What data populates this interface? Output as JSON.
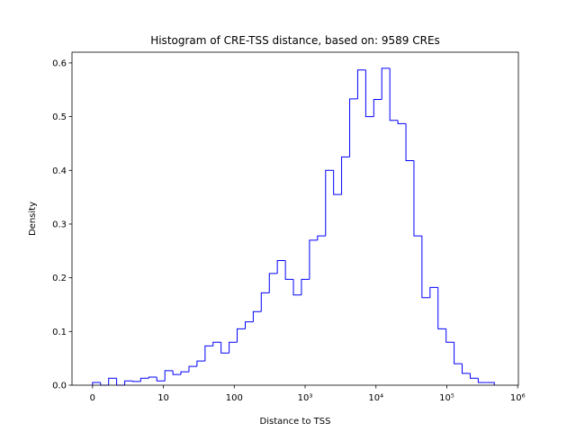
{
  "chart_data": {
    "type": "histogram",
    "title": "Histogram of CRE-TSS distance, based on: 9589 CREs",
    "xlabel": "Distance to TSS",
    "ylabel": "Density",
    "color": "#0000ff",
    "bins": [
      0,
      0.113,
      0.227,
      0.34,
      0.454,
      0.567,
      0.68,
      0.794,
      0.907,
      1.021,
      1.134,
      1.247,
      1.361,
      1.474,
      1.588,
      1.701,
      1.814,
      1.928,
      2.041,
      2.155,
      2.268,
      2.381,
      2.495,
      2.608,
      2.722,
      2.835,
      2.948,
      3.062,
      3.175,
      3.289,
      3.402,
      3.515,
      3.629,
      3.742,
      3.856,
      3.969,
      4.082,
      4.196,
      4.309,
      4.423,
      4.536,
      4.649,
      4.763,
      4.876,
      4.99,
      5.103,
      5.216,
      5.33,
      5.443,
      5.557,
      5.67
    ],
    "counts": [
      0.005,
      0,
      0.013,
      0,
      0.008,
      0.007,
      0.013,
      0.015,
      0.008,
      0.027,
      0.02,
      0.025,
      0.035,
      0.045,
      0.073,
      0.08,
      0.06,
      0.08,
      0.105,
      0.118,
      0.137,
      0.172,
      0.208,
      0.232,
      0.197,
      0.168,
      0.197,
      0.27,
      0.278,
      0.4,
      0.355,
      0.425,
      0.533,
      0.587,
      0.5,
      0.532,
      0.59,
      0.493,
      0.487,
      0.418,
      0.278,
      0.163,
      0.182,
      0.105,
      0.08,
      0.04,
      0.022,
      0.013,
      0.005,
      0.005
    ],
    "xlim": [
      -0.29,
      6.01
    ],
    "xticks": [
      0,
      {
        "value": 1,
        "label": "10"
      },
      {
        "value": 2,
        "label": "100"
      },
      {
        "value": 3,
        "label": "10³"
      },
      {
        "value": 4,
        "label": "10⁴"
      },
      {
        "value": 5,
        "label": "10⁵"
      },
      {
        "value": 6,
        "label": "10⁶"
      }
    ],
    "ylim": [
      0,
      0.62
    ],
    "yticks": [
      {
        "value": 0,
        "label": "0.0"
      },
      0.1,
      0.2,
      0.3,
      0.4,
      0.5,
      0.6
    ]
  }
}
